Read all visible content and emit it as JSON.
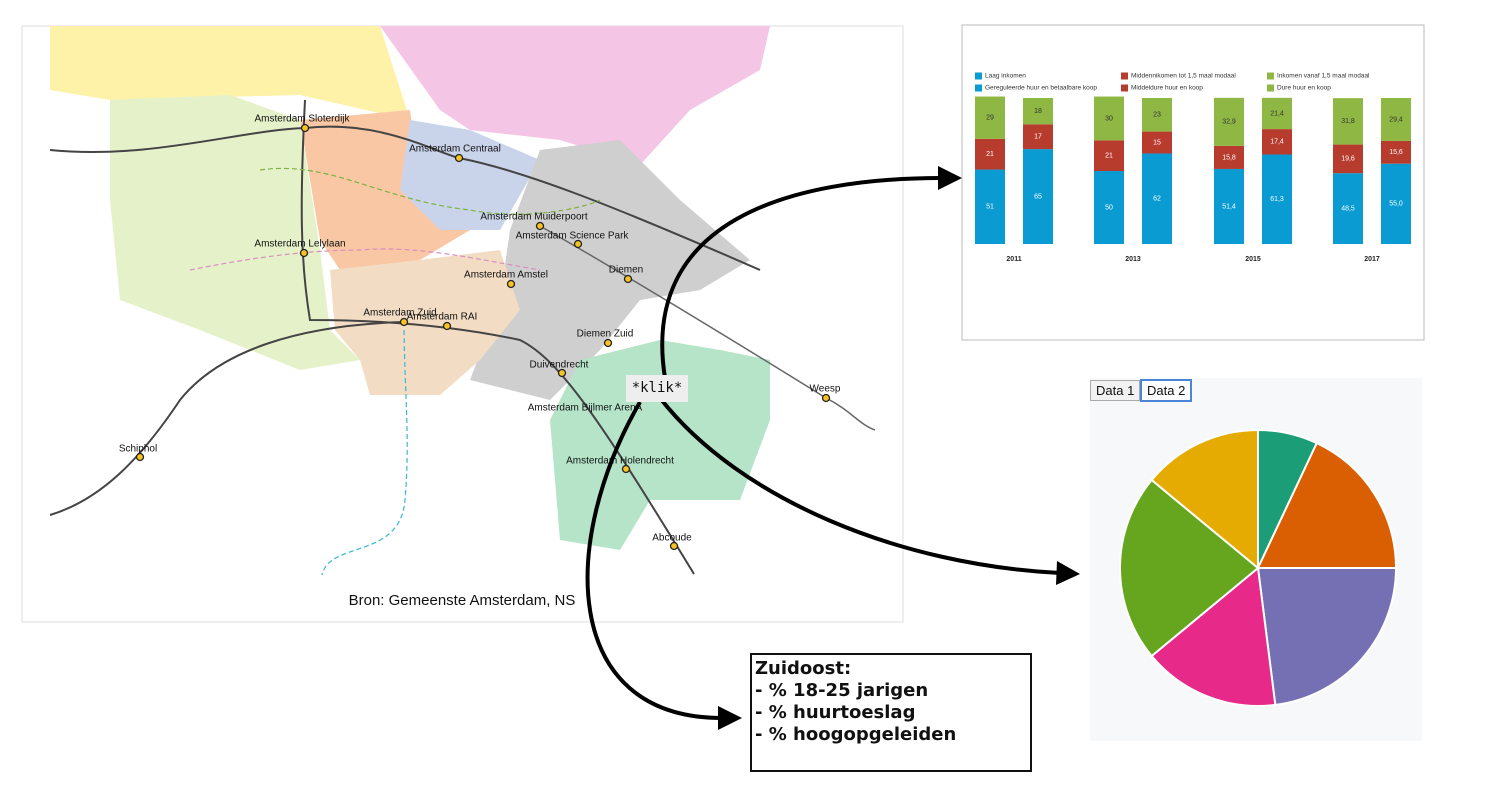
{
  "map": {
    "stations": [
      "Amsterdam Sloterdijk",
      "Amsterdam Centraal",
      "Amsterdam Muiderpoort",
      "Amsterdam Science Park",
      "Amsterdam Lelylaan",
      "Amsterdam Amstel",
      "Diemen",
      "Amsterdam Zuid",
      "Amsterdam RAI",
      "Diemen Zuid",
      "Duivendrecht",
      "Weesp",
      "Amsterdam Bijlmer ArenA",
      "Schiphol",
      "Amsterdam Holendrecht",
      "Abcoude"
    ],
    "source": "Bron: Gemeenste Amsterdam, NS"
  },
  "click_label": "*klik*",
  "chart_data": [
    {
      "type": "bar",
      "stacked": true,
      "categories": [
        "2011",
        "2013",
        "2015",
        "2017"
      ],
      "series": [
        {
          "name": "Laag inkomen",
          "color": "#0a9bd2",
          "group": 0,
          "values": [
            51,
            50,
            51.4,
            48.5
          ],
          "value_labels": [
            "51",
            "50",
            "51,4",
            "48,5"
          ]
        },
        {
          "name": "Middennikomen tot 1,5 maal modaal",
          "color": "#b83c2e",
          "group": 0,
          "values": [
            21,
            21,
            15.8,
            19.6
          ],
          "value_labels": [
            "21",
            "21",
            "15,8",
            "19,6"
          ]
        },
        {
          "name": "Inkomen vanaf 1,5 maal modaal",
          "color": "#8fb743",
          "group": 0,
          "values": [
            29,
            30,
            32.9,
            31.8
          ],
          "value_labels": [
            "29",
            "30",
            "32,9",
            "31,8"
          ]
        },
        {
          "name": "Gereguleerde huur en betaalbare koop",
          "color": "#0a9bd2",
          "group": 1,
          "values": [
            65,
            62,
            61.3,
            55.0
          ],
          "value_labels": [
            "65",
            "62",
            "61,3",
            "55,0"
          ]
        },
        {
          "name": "Middeldure huur en koop",
          "color": "#b83c2e",
          "group": 1,
          "values": [
            17,
            15,
            17.4,
            15.6
          ],
          "value_labels": [
            "17",
            "15",
            "17,4",
            "15,6"
          ]
        },
        {
          "name": "Dure huur en koop",
          "color": "#8fb743",
          "group": 1,
          "values": [
            18,
            23,
            21.4,
            29.4
          ],
          "value_labels": [
            "18",
            "23",
            "21,4",
            "29,4"
          ]
        }
      ]
    },
    {
      "type": "pie",
      "buttons": [
        "Data 1",
        "Data 2"
      ],
      "active_button": 1,
      "values": [
        7,
        18,
        23,
        16,
        22,
        14
      ],
      "colors": [
        "#1b9e77",
        "#d95f02",
        "#7570b3",
        "#e7298a",
        "#66a61e",
        "#e6ab02"
      ]
    }
  ],
  "note": {
    "lines": [
      "Zuidoost:",
      "- % 18-25 jarigen",
      "- % huurtoeslag",
      "- % hoogopgeleiden"
    ]
  }
}
